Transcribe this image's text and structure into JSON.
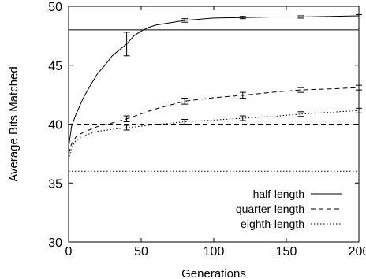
{
  "chart_data": {
    "type": "line",
    "title": "",
    "xlabel": "Generations",
    "ylabel": "Average Bits Matched",
    "xlim": [
      0,
      200
    ],
    "ylim": [
      30,
      50
    ],
    "xticks": [
      0,
      50,
      100,
      150,
      200
    ],
    "yticks": [
      30,
      35,
      40,
      45,
      50
    ],
    "grid": false,
    "legend_position": "lower-right",
    "reference_lines": [
      {
        "series": "half-length",
        "y": 48
      },
      {
        "series": "quarter-length",
        "y": 40
      },
      {
        "series": "eighth-length",
        "y": 36
      }
    ],
    "series": [
      {
        "name": "half-length",
        "style": "solid",
        "x": [
          0,
          2,
          5,
          10,
          15,
          20,
          25,
          30,
          35,
          40,
          45,
          50,
          55,
          60,
          70,
          80,
          100,
          120,
          140,
          160,
          180,
          200
        ],
        "y": [
          38.0,
          39.8,
          40.8,
          42.2,
          43.3,
          44.3,
          45.0,
          45.8,
          46.3,
          46.8,
          47.5,
          47.9,
          48.2,
          48.4,
          48.6,
          48.8,
          49.0,
          49.05,
          49.1,
          49.1,
          49.15,
          49.2
        ],
        "error_bars": [
          {
            "x": 40,
            "y": 46.8,
            "low": 45.8,
            "high": 47.8
          },
          {
            "x": 80,
            "y": 48.8,
            "low": 48.65,
            "high": 48.95
          },
          {
            "x": 120,
            "y": 49.05,
            "low": 48.95,
            "high": 49.15
          },
          {
            "x": 160,
            "y": 49.1,
            "low": 49.0,
            "high": 49.2
          },
          {
            "x": 200,
            "y": 49.2,
            "low": 49.1,
            "high": 49.3
          }
        ]
      },
      {
        "name": "quarter-length",
        "style": "dashed",
        "x": [
          0,
          2,
          5,
          10,
          20,
          30,
          40,
          60,
          80,
          100,
          120,
          140,
          160,
          180,
          200
        ],
        "y": [
          37.5,
          38.3,
          38.9,
          39.3,
          39.8,
          40.1,
          40.45,
          41.3,
          41.95,
          42.25,
          42.45,
          42.7,
          42.9,
          43.0,
          43.1
        ],
        "error_bars": [
          {
            "x": 40,
            "y": 40.45,
            "low": 40.2,
            "high": 40.7
          },
          {
            "x": 80,
            "y": 41.95,
            "low": 41.7,
            "high": 42.2
          },
          {
            "x": 120,
            "y": 42.45,
            "low": 42.2,
            "high": 42.7
          },
          {
            "x": 160,
            "y": 42.9,
            "low": 42.7,
            "high": 43.1
          },
          {
            "x": 200,
            "y": 43.1,
            "low": 42.9,
            "high": 43.3
          }
        ]
      },
      {
        "name": "eighth-length",
        "style": "dotted",
        "x": [
          0,
          2,
          5,
          10,
          20,
          30,
          40,
          60,
          80,
          100,
          120,
          140,
          160,
          180,
          200
        ],
        "y": [
          37.0,
          38.0,
          38.6,
          39.0,
          39.4,
          39.55,
          39.7,
          39.95,
          40.2,
          40.35,
          40.5,
          40.65,
          40.85,
          41.0,
          41.15
        ],
        "error_bars": [
          {
            "x": 40,
            "y": 39.7,
            "low": 39.5,
            "high": 39.9
          },
          {
            "x": 80,
            "y": 40.2,
            "low": 40.0,
            "high": 40.4
          },
          {
            "x": 120,
            "y": 40.5,
            "low": 40.3,
            "high": 40.7
          },
          {
            "x": 160,
            "y": 40.85,
            "low": 40.65,
            "high": 41.05
          },
          {
            "x": 200,
            "y": 41.15,
            "low": 40.95,
            "high": 41.35
          }
        ]
      }
    ]
  }
}
